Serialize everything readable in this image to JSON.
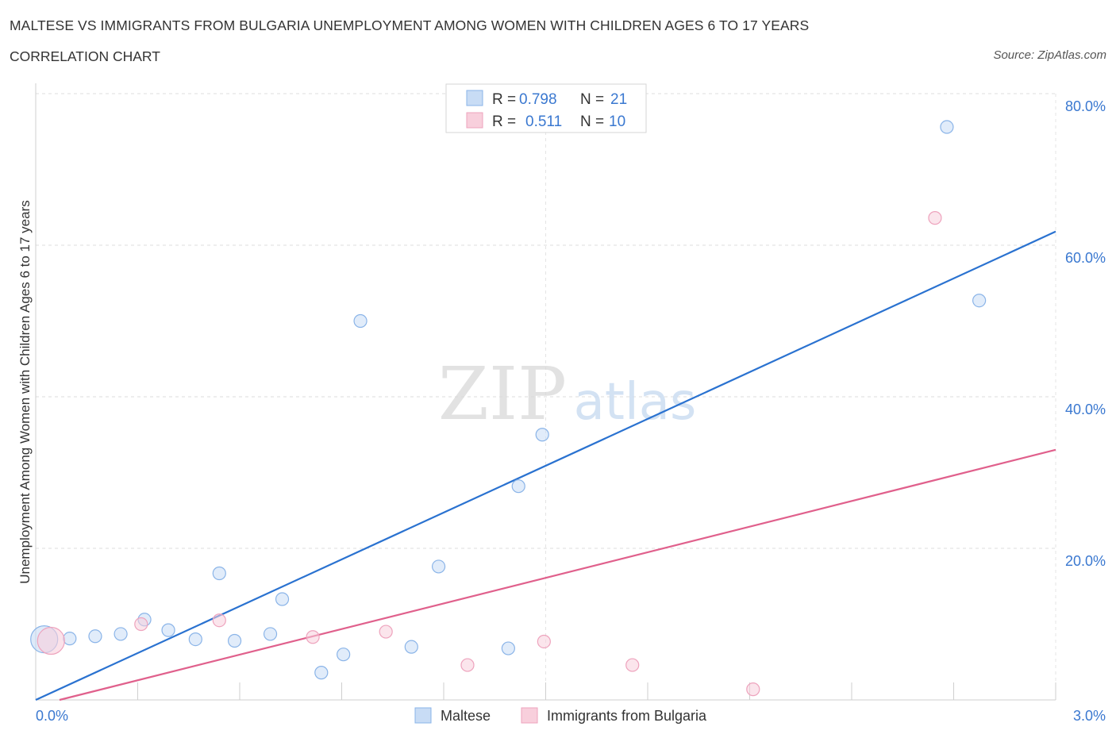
{
  "header": {
    "title": "MALTESE VS IMMIGRANTS FROM BULGARIA UNEMPLOYMENT AMONG WOMEN WITH CHILDREN AGES 6 TO 17 YEARS",
    "subtitle": "CORRELATION CHART",
    "source": "Source: ZipAtlas.com"
  },
  "watermark": {
    "zip": "ZIP",
    "atlas": "atlas"
  },
  "chart_data": {
    "type": "scatter",
    "title": "MALTESE VS IMMIGRANTS FROM BULGARIA UNEMPLOYMENT AMONG WOMEN WITH CHILDREN AGES 6 TO 17 YEARS",
    "subtitle": "CORRELATION CHART",
    "xlabel": "",
    "ylabel": "Unemployment Among Women with Children Ages 6 to 17 years",
    "xlim": [
      0,
      3.0
    ],
    "ylim": [
      0,
      80
    ],
    "x_tick_labels": [
      "0.0%",
      "3.0%"
    ],
    "y_ticks": [
      20,
      40,
      60,
      80
    ],
    "y_tick_labels": [
      "20.0%",
      "40.0%",
      "60.0%",
      "80.0%"
    ],
    "grid": true,
    "legend_position": "bottom-center",
    "stats_box": [
      {
        "r_label": "R =",
        "r": "0.798",
        "n_label": "N =",
        "n": "21"
      },
      {
        "r_label": "R =",
        "r": "0.511",
        "n_label": "N =",
        "n": "10"
      }
    ],
    "series": [
      {
        "name": "Maltese",
        "color": "#8ab4e8",
        "fill": "#c8dcf5",
        "line_color": "#2a72d0",
        "points": [
          {
            "x": 0.025,
            "y": 8.0,
            "big": true
          },
          {
            "x": 0.1,
            "y": 8.1
          },
          {
            "x": 0.175,
            "y": 8.4
          },
          {
            "x": 0.25,
            "y": 8.7
          },
          {
            "x": 0.32,
            "y": 10.6
          },
          {
            "x": 0.39,
            "y": 9.2
          },
          {
            "x": 0.47,
            "y": 8.0
          },
          {
            "x": 0.54,
            "y": 16.7
          },
          {
            "x": 0.585,
            "y": 7.8
          },
          {
            "x": 0.69,
            "y": 8.7
          },
          {
            "x": 0.725,
            "y": 13.3
          },
          {
            "x": 0.84,
            "y": 3.6
          },
          {
            "x": 0.905,
            "y": 6.0
          },
          {
            "x": 0.955,
            "y": 50.0
          },
          {
            "x": 1.105,
            "y": 7.0
          },
          {
            "x": 1.185,
            "y": 17.6
          },
          {
            "x": 1.39,
            "y": 6.8
          },
          {
            "x": 1.42,
            "y": 28.2
          },
          {
            "x": 1.49,
            "y": 35.0
          },
          {
            "x": 2.68,
            "y": 75.6
          },
          {
            "x": 2.775,
            "y": 52.7
          }
        ],
        "trend": {
          "x1": 0.0,
          "y1": 0.0,
          "x2": 3.0,
          "y2": 61.8
        }
      },
      {
        "name": "Immigrants from Bulgaria",
        "color": "#eea3bd",
        "fill": "#f8cfdc",
        "line_color": "#e0608c",
        "points": [
          {
            "x": 0.045,
            "y": 7.8,
            "big": true
          },
          {
            "x": 0.31,
            "y": 10.0
          },
          {
            "x": 0.54,
            "y": 10.5
          },
          {
            "x": 0.815,
            "y": 8.3
          },
          {
            "x": 1.03,
            "y": 9.0
          },
          {
            "x": 1.27,
            "y": 4.6
          },
          {
            "x": 1.495,
            "y": 7.7
          },
          {
            "x": 1.755,
            "y": 4.6
          },
          {
            "x": 2.11,
            "y": 1.4
          },
          {
            "x": 2.645,
            "y": 63.6
          }
        ],
        "trend": {
          "x1": 0.07,
          "y1": 0.0,
          "x2": 3.0,
          "y2": 33.0
        }
      }
    ]
  }
}
